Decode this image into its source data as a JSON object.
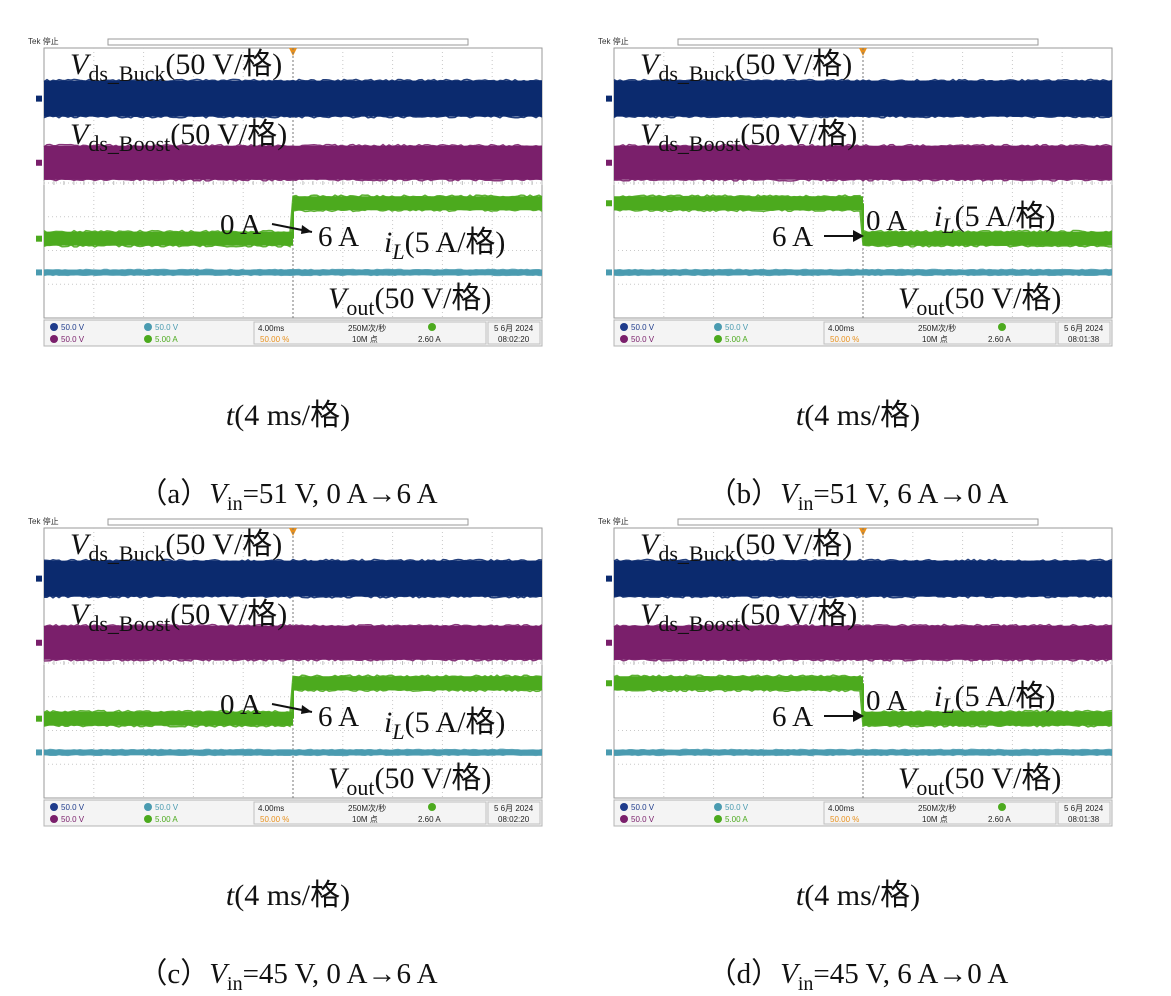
{
  "figure": {
    "panels": [
      {
        "id": "a",
        "caption_prefix": "（a）",
        "vin_label": "V",
        "vin_sub": "in",
        "caption_rest": "=51 V, 0 A→6 A",
        "time_axis": {
          "var": "t",
          "text": "(4 ms/格)"
        },
        "annotations": {
          "vds_buck": {
            "var": "V",
            "sub": "ds_Buck",
            "scale": "(50 V/格)"
          },
          "vds_boost": {
            "var": "V",
            "sub": "ds_Boost",
            "scale": "(50 V/格)"
          },
          "il": {
            "var": "i",
            "sub": "L",
            "scale": "(5 A/格)"
          },
          "vout": {
            "var": "V",
            "sub": "out",
            "scale": "(50 V/格)"
          },
          "step_from": "0 A",
          "step_to": "6 A"
        },
        "tek_label": "Tek 停止",
        "status": {
          "ch1": "50.0 V",
          "ch2": "50.0 V",
          "ch3": "50.0 V",
          "ch4": "5.00 A",
          "timebase": "4.00ms",
          "sample_rate": "250M次/秒",
          "record": "10M 点",
          "trigger_pos": "50.00 %",
          "trigger_level": "2.60 A",
          "date": "5 6月 2024",
          "time": "08:02:20"
        }
      },
      {
        "id": "b",
        "caption_prefix": "（b）",
        "vin_label": "V",
        "vin_sub": "in",
        "caption_rest": "=51 V, 6 A→0 A",
        "time_axis": {
          "var": "t",
          "text": "(4 ms/格)"
        },
        "annotations": {
          "vds_buck": {
            "var": "V",
            "sub": "ds_Buck",
            "scale": "(50 V/格)"
          },
          "vds_boost": {
            "var": "V",
            "sub": "ds_Boost",
            "scale": "(50 V/格)"
          },
          "il": {
            "var": "i",
            "sub": "L",
            "scale": "(5 A/格)"
          },
          "vout": {
            "var": "V",
            "sub": "out",
            "scale": "(50 V/格)"
          },
          "step_from": "6 A",
          "step_to": "0 A"
        },
        "tek_label": "Tek 停止",
        "status": {
          "ch1": "50.0 V",
          "ch2": "50.0 V",
          "ch3": "50.0 V",
          "ch4": "5.00 A",
          "timebase": "4.00ms",
          "sample_rate": "250M次/秒",
          "record": "10M 点",
          "trigger_pos": "50.00 %",
          "trigger_level": "2.60 A",
          "date": "5 6月 2024",
          "time": "08:01:38"
        }
      },
      {
        "id": "c",
        "caption_prefix": "（c）",
        "vin_label": "V",
        "vin_sub": "in",
        "caption_rest": "=45 V, 0 A→6 A",
        "time_axis": {
          "var": "t",
          "text": "(4 ms/格)"
        },
        "annotations": {
          "vds_buck": {
            "var": "V",
            "sub": "ds_Buck",
            "scale": "(50 V/格)"
          },
          "vds_boost": {
            "var": "V",
            "sub": "ds_Boost",
            "scale": "(50 V/格)"
          },
          "il": {
            "var": "i",
            "sub": "L",
            "scale": "(5 A/格)"
          },
          "vout": {
            "var": "V",
            "sub": "out",
            "scale": "(50 V/格)"
          },
          "step_from": "0 A",
          "step_to": "6 A"
        },
        "tek_label": "Tek 停止",
        "status": {
          "ch1": "50.0 V",
          "ch2": "50.0 V",
          "ch3": "50.0 V",
          "ch4": "5.00 A",
          "timebase": "4.00ms",
          "sample_rate": "250M次/秒",
          "record": "10M 点",
          "trigger_pos": "50.00 %",
          "trigger_level": "2.60 A",
          "date": "5 6月 2024",
          "time": "08:02:20"
        }
      },
      {
        "id": "d",
        "caption_prefix": "（d）",
        "vin_label": "V",
        "vin_sub": "in",
        "caption_rest": "=45 V, 6 A→0 A",
        "time_axis": {
          "var": "t",
          "text": "(4 ms/格)"
        },
        "annotations": {
          "vds_buck": {
            "var": "V",
            "sub": "ds_Buck",
            "scale": "(50 V/格)"
          },
          "vds_boost": {
            "var": "V",
            "sub": "ds_Boost",
            "scale": "(50 V/格)"
          },
          "il": {
            "var": "i",
            "sub": "L",
            "scale": "(5 A/格)"
          },
          "vout": {
            "var": "V",
            "sub": "out",
            "scale": "(50 V/格)"
          },
          "step_from": "6 A",
          "step_to": "0 A"
        },
        "tek_label": "Tek 停止",
        "status": {
          "ch1": "50.0 V",
          "ch2": "50.0 V",
          "ch3": "50.0 V",
          "ch4": "5.00 A",
          "timebase": "4.00ms",
          "sample_rate": "250M次/秒",
          "record": "10M 点",
          "trigger_pos": "50.00 %",
          "trigger_level": "2.60 A",
          "date": "5 6月 2024",
          "time": "08:01:38"
        }
      }
    ]
  },
  "chart_data": [
    {
      "type": "line",
      "panel": "a",
      "x_divisions": 10,
      "y_divisions": 8,
      "grid": true,
      "series": [
        {
          "channel": 1,
          "color": "#0b2a6e",
          "before_div": 6.5,
          "after_div": 6.5
        },
        {
          "channel": 2,
          "color": "#7a1f6b",
          "before_div": 4.6,
          "after_div": 4.6
        },
        {
          "channel": 4,
          "color": "#4caa1e",
          "before_div": 2.35,
          "after_div": 3.4
        },
        {
          "channel": 3,
          "color": "#4a9bb0",
          "before_div": 1.35,
          "after_div": 1.35
        }
      ],
      "step_at_div": 5
    },
    {
      "type": "line",
      "panel": "b",
      "x_divisions": 10,
      "y_divisions": 8,
      "grid": true,
      "series": [
        {
          "channel": 1,
          "color": "#0b2a6e",
          "before_div": 6.5,
          "after_div": 6.5
        },
        {
          "channel": 2,
          "color": "#7a1f6b",
          "before_div": 4.6,
          "after_div": 4.6
        },
        {
          "channel": 4,
          "color": "#4caa1e",
          "before_div": 3.4,
          "after_div": 2.35
        },
        {
          "channel": 3,
          "color": "#4a9bb0",
          "before_div": 1.35,
          "after_div": 1.35
        }
      ],
      "step_at_div": 5
    },
    {
      "type": "line",
      "panel": "c",
      "x_divisions": 10,
      "y_divisions": 8,
      "grid": true,
      "series": [
        {
          "channel": 1,
          "color": "#0b2a6e",
          "before_div": 6.5,
          "after_div": 6.5
        },
        {
          "channel": 2,
          "color": "#7a1f6b",
          "before_div": 4.6,
          "after_div": 4.6
        },
        {
          "channel": 4,
          "color": "#4caa1e",
          "before_div": 2.35,
          "after_div": 3.4
        },
        {
          "channel": 3,
          "color": "#4a9bb0",
          "before_div": 1.35,
          "after_div": 1.35
        }
      ],
      "step_at_div": 5
    },
    {
      "type": "line",
      "panel": "d",
      "x_divisions": 10,
      "y_divisions": 8,
      "grid": true,
      "series": [
        {
          "channel": 1,
          "color": "#0b2a6e",
          "before_div": 6.5,
          "after_div": 6.5
        },
        {
          "channel": 2,
          "color": "#7a1f6b",
          "before_div": 4.6,
          "after_div": 4.6
        },
        {
          "channel": 4,
          "color": "#4caa1e",
          "before_div": 3.4,
          "after_div": 2.35
        },
        {
          "channel": 3,
          "color": "#4a9bb0",
          "before_div": 1.35,
          "after_div": 1.35
        }
      ],
      "step_at_div": 5
    }
  ]
}
